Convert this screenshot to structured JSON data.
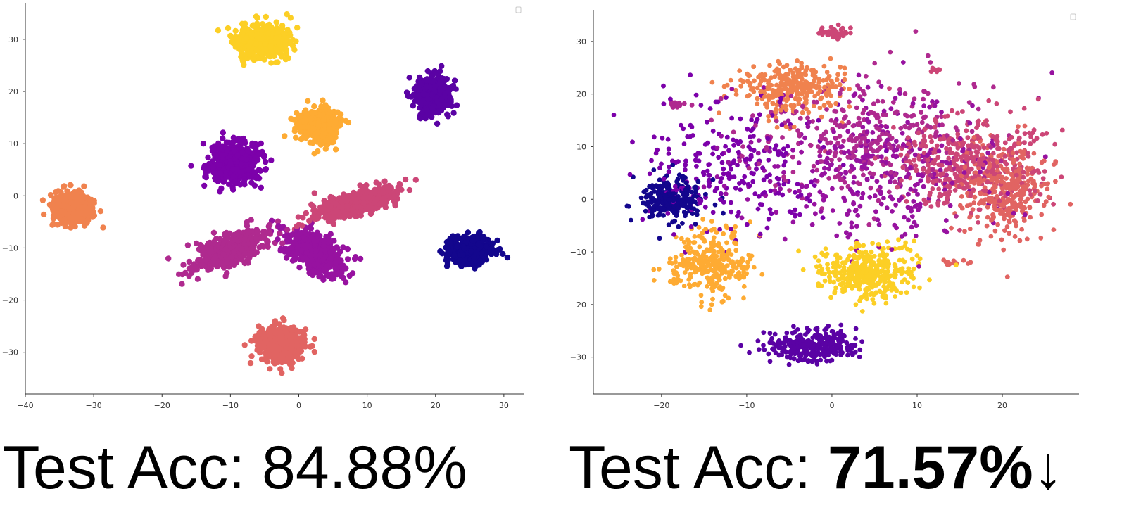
{
  "captions": {
    "left": {
      "prefix": "Test Acc: ",
      "value": "84.88%"
    },
    "right": {
      "prefix": "Test Acc: ",
      "value": "71.57%",
      "arrow": "↓"
    }
  },
  "chart_data": [
    {
      "type": "scatter",
      "title": "",
      "xlabel": "",
      "ylabel": "",
      "xlim": [
        -40,
        33
      ],
      "ylim": [
        -38,
        37
      ],
      "xticks": [
        -40,
        -30,
        -20,
        -10,
        0,
        10,
        20,
        30
      ],
      "yticks": [
        -30,
        -20,
        -10,
        0,
        10,
        20,
        30
      ],
      "grid": false,
      "clusters": [
        {
          "color": "#fccf25",
          "center": [
            -5.5,
            29.5
          ],
          "spread": [
            3.3,
            2.8
          ],
          "count": 500,
          "label_index": 9
        },
        {
          "color": "#5a02a4",
          "center": [
            19.5,
            19.5
          ],
          "spread": [
            2.5,
            3.3
          ],
          "count": 430,
          "label_index": 1
        },
        {
          "color": "#feab33",
          "center": [
            3,
            13.5
          ],
          "spread": [
            2.8,
            3.0
          ],
          "count": 430,
          "label_index": 8
        },
        {
          "color": "#7c01aa",
          "center": [
            -9.5,
            6.5
          ],
          "spread": [
            3.5,
            3.8
          ],
          "count": 420,
          "label_index": 2
        },
        {
          "color": "#f0824e",
          "center": [
            -33,
            -2.5
          ],
          "spread": [
            2.8,
            2.8
          ],
          "count": 420,
          "label_index": 7
        },
        {
          "color": "#cc4677",
          "center": [
            8,
            -1.5
          ],
          "spread": [
            6.0,
            1.9
          ],
          "angle": 22,
          "count": 500,
          "label_index": 5
        },
        {
          "color": "#af2a8f",
          "center": [
            -10,
            -10.5
          ],
          "spread": [
            5.3,
            2.3
          ],
          "angle": 30,
          "count": 500,
          "label_index": 4
        },
        {
          "color": "#9712a0",
          "center": [
            2.5,
            -11
          ],
          "spread": [
            4.8,
            2.6
          ],
          "angle": -42,
          "count": 480,
          "label_index": 3
        },
        {
          "color": "#13068d",
          "center": [
            25,
            -10.5
          ],
          "spread": [
            3.0,
            2.4
          ],
          "count": 450,
          "label_index": 0
        },
        {
          "color": "#e16462",
          "center": [
            -2.5,
            -28.5
          ],
          "spread": [
            3.0,
            3.2
          ],
          "count": 450,
          "label_index": 6
        }
      ]
    },
    {
      "type": "scatter",
      "title": "",
      "xlabel": "",
      "ylabel": "",
      "xlim": [
        -28,
        29
      ],
      "ylim": [
        -37,
        36
      ],
      "xticks": [
        -20,
        -10,
        0,
        10,
        20
      ],
      "yticks": [
        -30,
        -20,
        -10,
        0,
        10,
        20,
        30
      ],
      "grid": false,
      "clusters": [
        {
          "color": "#13068d",
          "center": [
            -19,
            0
          ],
          "spread": [
            3.2,
            4.0
          ],
          "count": 260,
          "label_index": 0
        },
        {
          "color": "#5a02a4",
          "center": [
            -2,
            -28
          ],
          "spread": [
            4.5,
            3.0
          ],
          "count": 300,
          "label_index": 1
        },
        {
          "color": "#7c01aa",
          "center": [
            -12,
            6
          ],
          "spread": [
            10,
            12
          ],
          "count": 250,
          "label_index": 2
        },
        {
          "color": "#9712a0",
          "center": [
            5,
            6
          ],
          "spread": [
            13,
            13
          ],
          "count": 350,
          "label_index": 3
        },
        {
          "color": "#af2a8f",
          "center": [
            4,
            12
          ],
          "spread": [
            12,
            11
          ],
          "count": 320,
          "label_index": 4
        },
        {
          "color": "#cc4677",
          "center": [
            16,
            7
          ],
          "spread": [
            8,
            9
          ],
          "count": 380,
          "label_index": 5
        },
        {
          "color": "#e16462",
          "center": [
            20,
            2
          ],
          "spread": [
            4.5,
            8
          ],
          "count": 350,
          "label_index": 6
        },
        {
          "color": "#f0824e",
          "center": [
            -5,
            21
          ],
          "spread": [
            5.5,
            4.5
          ],
          "count": 300,
          "label_index": 7
        },
        {
          "color": "#feab33",
          "center": [
            -14,
            -12
          ],
          "spread": [
            4.5,
            5.5
          ],
          "count": 300,
          "label_index": 8
        },
        {
          "color": "#fccf25",
          "center": [
            4,
            -14
          ],
          "spread": [
            5.5,
            4.5
          ],
          "count": 380,
          "label_index": 9
        },
        {
          "color": "#cc4677",
          "center": [
            0.5,
            31.5
          ],
          "spread": [
            1.6,
            1.0
          ],
          "count": 40,
          "label_index": 5
        },
        {
          "color": "#af2a8f",
          "center": [
            -18,
            18
          ],
          "spread": [
            1.4,
            0.6
          ],
          "count": 18,
          "label_index": 4
        },
        {
          "color": "#cc4677",
          "center": [
            12,
            24.5
          ],
          "spread": [
            0.8,
            0.3
          ],
          "count": 10,
          "label_index": 5
        },
        {
          "color": "#e16462",
          "center": [
            14,
            -12
          ],
          "spread": [
            1.5,
            0.4
          ],
          "count": 15,
          "label_index": 6
        }
      ]
    }
  ]
}
